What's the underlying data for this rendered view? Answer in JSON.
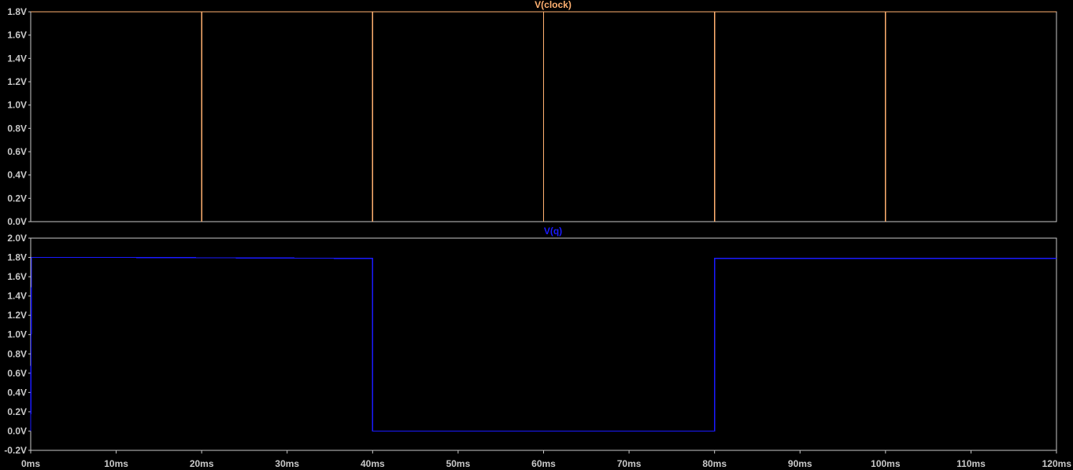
{
  "chart_data": [
    {
      "type": "line",
      "title": "V(clock)",
      "color": "#ffb070",
      "ylim": [
        0.0,
        1.8
      ],
      "yticks": [
        {
          "value": 0.0,
          "label": "0.0V"
        },
        {
          "value": 0.2,
          "label": "0.2V"
        },
        {
          "value": 0.4,
          "label": "0.4V"
        },
        {
          "value": 0.6,
          "label": "0.6V"
        },
        {
          "value": 0.8,
          "label": "0.8V"
        },
        {
          "value": 1.0,
          "label": "1.0V"
        },
        {
          "value": 1.2,
          "label": "1.2V"
        },
        {
          "value": 1.4,
          "label": "1.4V"
        },
        {
          "value": 1.6,
          "label": "1.6V"
        },
        {
          "value": 1.8,
          "label": "1.8V"
        }
      ],
      "xlim": [
        0,
        120
      ],
      "x_unit": "ms",
      "x": [
        0,
        20,
        20,
        20,
        20,
        40,
        40,
        40,
        60,
        60,
        60,
        80,
        80,
        80,
        100,
        100,
        100,
        120
      ],
      "y": [
        1.8,
        1.8,
        1.7,
        0,
        1.8,
        1.8,
        0,
        1.8,
        1.8,
        0,
        1.8,
        1.8,
        0,
        1.8,
        1.8,
        0,
        1.8,
        1.8
      ],
      "grid": false
    },
    {
      "type": "line",
      "title": "V(q)",
      "color": "#1a1aff",
      "ylim": [
        -0.2,
        2.0
      ],
      "yticks": [
        {
          "value": -0.2,
          "label": "-0.2V"
        },
        {
          "value": 0.0,
          "label": "0.0V"
        },
        {
          "value": 0.2,
          "label": "0.2V"
        },
        {
          "value": 0.4,
          "label": "0.4V"
        },
        {
          "value": 0.6,
          "label": "0.6V"
        },
        {
          "value": 0.8,
          "label": "0.8V"
        },
        {
          "value": 1.0,
          "label": "1.0V"
        },
        {
          "value": 1.2,
          "label": "1.2V"
        },
        {
          "value": 1.4,
          "label": "1.4V"
        },
        {
          "value": 1.6,
          "label": "1.6V"
        },
        {
          "value": 1.8,
          "label": "1.8V"
        },
        {
          "value": 2.0,
          "label": "2.0V"
        }
      ],
      "xlim": [
        0,
        120
      ],
      "x_unit": "ms",
      "x": [
        0,
        0.1,
        10,
        40,
        40,
        80,
        80,
        120
      ],
      "y": [
        0,
        1.8,
        1.8,
        1.79,
        0,
        0,
        1.79,
        1.79
      ],
      "grid": false
    }
  ],
  "x_axis": {
    "ticks": [
      {
        "value": 0,
        "label": "0ms"
      },
      {
        "value": 10,
        "label": "10ms"
      },
      {
        "value": 20,
        "label": "20ms"
      },
      {
        "value": 30,
        "label": "30ms"
      },
      {
        "value": 40,
        "label": "40ms"
      },
      {
        "value": 50,
        "label": "50ms"
      },
      {
        "value": 60,
        "label": "60ms"
      },
      {
        "value": 70,
        "label": "70ms"
      },
      {
        "value": 80,
        "label": "80ms"
      },
      {
        "value": 90,
        "label": "90ms"
      },
      {
        "value": 100,
        "label": "100ms"
      },
      {
        "value": 110,
        "label": "110ms"
      },
      {
        "value": 120,
        "label": "120ms"
      }
    ]
  }
}
